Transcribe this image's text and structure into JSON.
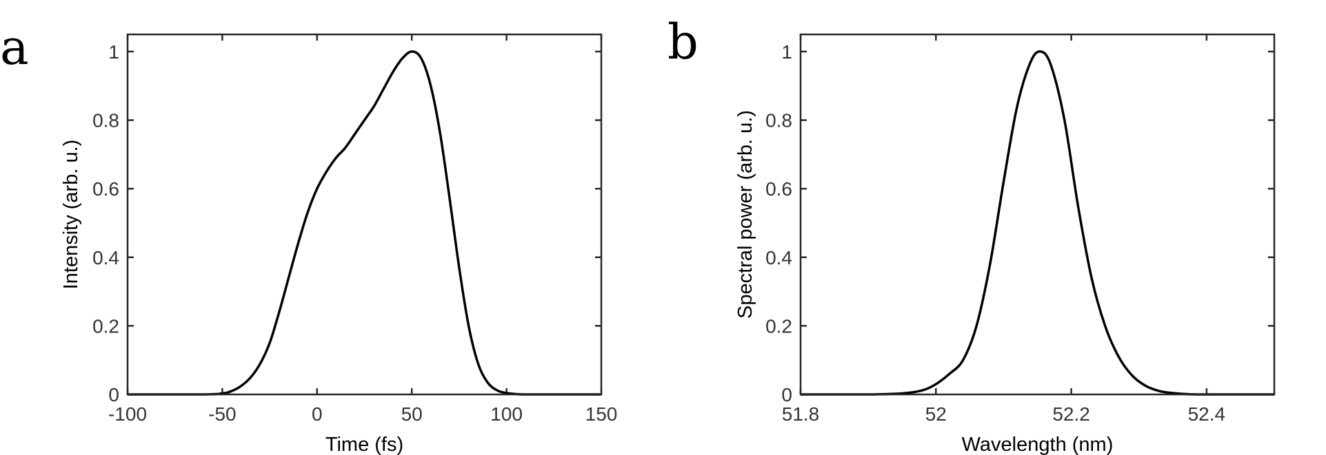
{
  "chart_data": [
    {
      "panel": "a",
      "type": "line",
      "xlabel": "Time (fs)",
      "ylabel": "Intensity (arb. u.)",
      "xlim": [
        -100,
        150
      ],
      "ylim": [
        0,
        1.05
      ],
      "xticks": [
        -100,
        -50,
        0,
        50,
        100,
        150
      ],
      "xtick_labels": [
        "-100",
        "-50",
        "0",
        "50",
        "100",
        "150"
      ],
      "yticks": [
        0,
        0.2,
        0.4,
        0.6,
        0.8,
        1
      ],
      "ytick_labels": [
        "0",
        "0.2",
        "0.4",
        "0.6",
        "0.8",
        "1"
      ],
      "grid": false,
      "series": [
        {
          "x": [
            -100,
            -60,
            -50,
            -45,
            -40,
            -35,
            -30,
            -25,
            -20,
            -15,
            -10,
            -5,
            0,
            5,
            10,
            15,
            20,
            25,
            30,
            35,
            40,
            45,
            50,
            55,
            60,
            65,
            70,
            75,
            80,
            85,
            90,
            95,
            100,
            105,
            110,
            120,
            150
          ],
          "y": [
            0,
            0,
            0.003,
            0.01,
            0.025,
            0.05,
            0.09,
            0.15,
            0.24,
            0.34,
            0.44,
            0.53,
            0.6,
            0.65,
            0.69,
            0.72,
            0.76,
            0.8,
            0.84,
            0.89,
            0.94,
            0.98,
            1.0,
            0.98,
            0.9,
            0.76,
            0.57,
            0.37,
            0.2,
            0.09,
            0.035,
            0.012,
            0.004,
            0.001,
            0,
            0,
            0
          ]
        }
      ]
    },
    {
      "panel": "b",
      "type": "line",
      "xlabel": "Wavelength (nm)",
      "ylabel": "Spectral power (arb. u.)",
      "xlim": [
        51.8,
        52.5
      ],
      "ylim": [
        0,
        1.05
      ],
      "xticks": [
        51.8,
        52.0,
        52.2,
        52.4
      ],
      "xtick_labels": [
        "51.8",
        "52",
        "52.2",
        "52.4"
      ],
      "yticks": [
        0,
        0.2,
        0.4,
        0.6,
        0.8,
        1
      ],
      "ytick_labels": [
        "0",
        "0.2",
        "0.4",
        "0.6",
        "0.8",
        "1"
      ],
      "grid": false,
      "series": [
        {
          "x": [
            51.8,
            51.9,
            51.95,
            51.98,
            52.0,
            52.02,
            52.04,
            52.06,
            52.08,
            52.1,
            52.12,
            52.14,
            52.155,
            52.17,
            52.19,
            52.21,
            52.23,
            52.25,
            52.27,
            52.29,
            52.31,
            52.33,
            52.35,
            52.37,
            52.4,
            52.5
          ],
          "y": [
            0,
            0,
            0.003,
            0.012,
            0.03,
            0.06,
            0.1,
            0.2,
            0.38,
            0.62,
            0.84,
            0.97,
            1.0,
            0.96,
            0.8,
            0.55,
            0.34,
            0.2,
            0.11,
            0.055,
            0.025,
            0.01,
            0.004,
            0.001,
            0,
            0
          ]
        }
      ]
    }
  ]
}
